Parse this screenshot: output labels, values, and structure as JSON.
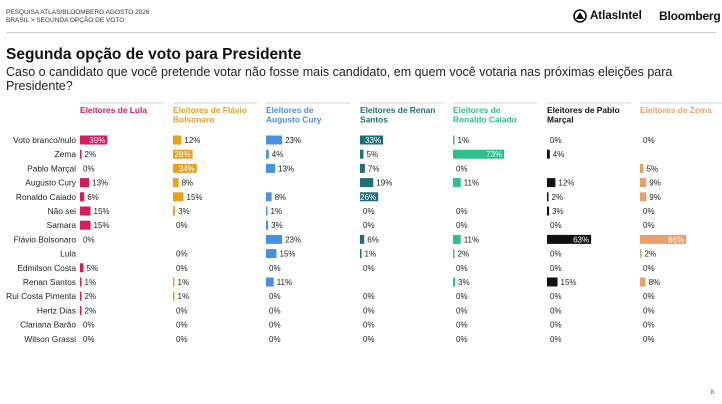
{
  "header": {
    "line1": "PESQUISA ATLAS/BLOOMBERG AGOSTO 2026",
    "line2": "BRASIL > SEGUNDA OPÇÃO DE VOTO"
  },
  "logos": {
    "atlas": "AtlasIntel",
    "bloomberg": "Bloomberg",
    "atlas_icon": "atlas-globe-icon"
  },
  "page_number": "8",
  "colors": {
    "lula": "#d81b60",
    "flavio": "#e6a11e",
    "cury": "#4a90e2",
    "renan": "#1f6f78",
    "caiado": "#2ebf8a",
    "marcal": "#111111",
    "zema": "#e8a16a",
    "zero_bar": "#cccccc"
  },
  "chart_data": {
    "type": "bar",
    "title": "Segunda opção de voto para Presidente",
    "subtitle": "Caso o candidato que você pretende votar não fosse mais candidato, em quem você votaria nas próximas eleições para Presidente?",
    "categories": [
      "Voto branco/nulo",
      "Zema",
      "Pablo Marçal",
      "Augusto Cury",
      "Ronaldo Caiado",
      "Não sei",
      "Samara",
      "Flávio Bolsonaro",
      "Lula",
      "Edmilson Costa",
      "Renan Santos",
      "Rui Costa Pimenta",
      "Hertz Dias",
      "Clariana Barão",
      "Wilson Grassi"
    ],
    "xlim": [
      0,
      100
    ],
    "series": [
      {
        "name": "Eleitores de Lula",
        "color": "#d81b60",
        "values": [
          39,
          2,
          0,
          13,
          6,
          15,
          15,
          0,
          null,
          5,
          1,
          2,
          2,
          0,
          0
        ]
      },
      {
        "name": "Eleitores de Flávio Bolsonaro",
        "color": "#e6a11e",
        "values": [
          12,
          28,
          34,
          8,
          15,
          3,
          0,
          null,
          0,
          0,
          1,
          1,
          0,
          0,
          0
        ]
      },
      {
        "name": "Eleitores de Augusto Cury",
        "color": "#4a90e2",
        "values": [
          23,
          4,
          13,
          null,
          8,
          1,
          3,
          23,
          15,
          0,
          11,
          0,
          0,
          0,
          0
        ]
      },
      {
        "name": "Eleitores de Renan Santos",
        "color": "#1f6f78",
        "values": [
          33,
          5,
          7,
          19,
          26,
          0,
          0,
          6,
          1,
          0,
          null,
          0,
          0,
          0,
          0
        ]
      },
      {
        "name": "Eleitores de Ronaldo Caiado",
        "color": "#2ebf8a",
        "values": [
          1,
          73,
          0,
          11,
          null,
          0,
          0,
          11,
          2,
          0,
          3,
          0,
          0,
          0,
          0
        ]
      },
      {
        "name": "Eleitores de Pablo Marçal",
        "color": "#111111",
        "values": [
          0,
          4,
          null,
          12,
          2,
          3,
          0,
          63,
          0,
          0,
          15,
          0,
          0,
          0,
          0
        ]
      },
      {
        "name": "Eleitores de Zema",
        "color": "#e8a16a",
        "values": [
          0,
          null,
          5,
          9,
          9,
          0,
          0,
          66,
          2,
          0,
          8,
          0,
          0,
          0,
          0
        ]
      }
    ]
  }
}
